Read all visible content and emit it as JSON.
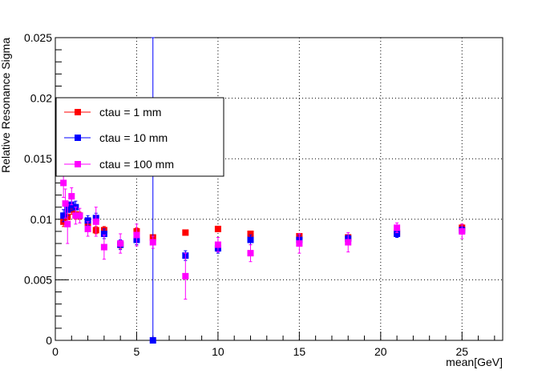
{
  "chart_data": {
    "type": "scatter",
    "title": "",
    "xlabel": "mean[GeV]",
    "ylabel": "Relative Resonance Sigma",
    "xlim": [
      0,
      27.5
    ],
    "ylim": [
      0,
      0.025
    ],
    "xticks": [
      0,
      5,
      10,
      15,
      20,
      25
    ],
    "xtick_labels": [
      "0",
      "5",
      "10",
      "15",
      "20",
      "25"
    ],
    "yticks": [
      0,
      0.005,
      0.01,
      0.015,
      0.02,
      0.025
    ],
    "ytick_labels": [
      "0",
      "0.005",
      "0.01",
      "0.015",
      "0.02",
      "0.025"
    ],
    "grid": true,
    "legend_position": "upper-left",
    "series": [
      {
        "name": "ctau = 1 mm",
        "color": "#ff0000",
        "points": [
          {
            "x": 0.5,
            "y": 0.0098,
            "err": 0.0004
          },
          {
            "x": 0.75,
            "y": 0.0102,
            "err": 0.0004
          },
          {
            "x": 1.0,
            "y": 0.0108,
            "err": 0.0004
          },
          {
            "x": 1.25,
            "y": 0.0104,
            "err": 0.0004
          },
          {
            "x": 1.5,
            "y": 0.0103,
            "err": 0.0003
          },
          {
            "x": 2.0,
            "y": 0.0097,
            "err": 0.0003
          },
          {
            "x": 2.5,
            "y": 0.0091,
            "err": 0.0003
          },
          {
            "x": 3.0,
            "y": 0.0091,
            "err": 0.0003
          },
          {
            "x": 4.0,
            "y": 0.0079,
            "err": 0.0003
          },
          {
            "x": 5.0,
            "y": 0.009,
            "err": 0.0003
          },
          {
            "x": 6.0,
            "y": 0.0085,
            "err": 0.0002
          },
          {
            "x": 8.0,
            "y": 0.0089,
            "err": 0.0002
          },
          {
            "x": 10.0,
            "y": 0.0092,
            "err": 0.0002
          },
          {
            "x": 12.0,
            "y": 0.0088,
            "err": 0.0002
          },
          {
            "x": 15.0,
            "y": 0.0086,
            "err": 0.0002
          },
          {
            "x": 18.0,
            "y": 0.0085,
            "err": 0.0002
          },
          {
            "x": 21.0,
            "y": 0.0089,
            "err": 0.0003
          },
          {
            "x": 25.0,
            "y": 0.0093,
            "err": 0.0003
          }
        ]
      },
      {
        "name": "ctau = 10 mm",
        "color": "#0000ff",
        "points": [
          {
            "x": 0.5,
            "y": 0.0103,
            "err": 0.0005
          },
          {
            "x": 0.75,
            "y": 0.0108,
            "err": 0.0005
          },
          {
            "x": 1.0,
            "y": 0.0112,
            "err": 0.0005
          },
          {
            "x": 1.25,
            "y": 0.011,
            "err": 0.0005
          },
          {
            "x": 2.0,
            "y": 0.0099,
            "err": 0.0004
          },
          {
            "x": 2.5,
            "y": 0.0101,
            "err": 0.0004
          },
          {
            "x": 3.0,
            "y": 0.0088,
            "err": 0.0004
          },
          {
            "x": 4.0,
            "y": 0.0079,
            "err": 0.0004
          },
          {
            "x": 5.0,
            "y": 0.0083,
            "err": 0.0004
          },
          {
            "x": 6.0,
            "y": 0.0,
            "err": 0.025
          },
          {
            "x": 8.0,
            "y": 0.007,
            "err": 0.0004
          },
          {
            "x": 10.0,
            "y": 0.0076,
            "err": 0.0004
          },
          {
            "x": 12.0,
            "y": 0.0083,
            "err": 0.0004
          },
          {
            "x": 15.0,
            "y": 0.0083,
            "err": 0.0004
          },
          {
            "x": 18.0,
            "y": 0.0084,
            "err": 0.0003
          },
          {
            "x": 21.0,
            "y": 0.0088,
            "err": 0.0003
          },
          {
            "x": 25.0,
            "y": 0.0091,
            "err": 0.0003
          }
        ]
      },
      {
        "name": "ctau = 100 mm",
        "color": "#ff00ff",
        "points": [
          {
            "x": 0.5,
            "y": 0.013,
            "err": 0.0012
          },
          {
            "x": 0.62,
            "y": 0.0113,
            "err": 0.0012
          },
          {
            "x": 0.75,
            "y": 0.0096,
            "err": 0.0016
          },
          {
            "x": 1.0,
            "y": 0.0119,
            "err": 0.0007
          },
          {
            "x": 1.25,
            "y": 0.0103,
            "err": 0.0007
          },
          {
            "x": 1.5,
            "y": 0.0103,
            "err": 0.0006
          },
          {
            "x": 2.0,
            "y": 0.0092,
            "err": 0.0006
          },
          {
            "x": 2.5,
            "y": 0.0098,
            "err": 0.0012
          },
          {
            "x": 3.0,
            "y": 0.0077,
            "err": 0.001
          },
          {
            "x": 4.0,
            "y": 0.008,
            "err": 0.0008
          },
          {
            "x": 5.0,
            "y": 0.0087,
            "err": 0.0009
          },
          {
            "x": 6.0,
            "y": 0.0081,
            "err": 0.0005
          },
          {
            "x": 8.0,
            "y": 0.0053,
            "err": 0.0019
          },
          {
            "x": 10.0,
            "y": 0.0079,
            "err": 0.0006
          },
          {
            "x": 12.0,
            "y": 0.0072,
            "err": 0.0007
          },
          {
            "x": 15.0,
            "y": 0.008,
            "err": 0.0008
          },
          {
            "x": 18.0,
            "y": 0.0081,
            "err": 0.0008
          },
          {
            "x": 21.0,
            "y": 0.0093,
            "err": 0.0004
          },
          {
            "x": 25.0,
            "y": 0.009,
            "err": 0.0006
          }
        ]
      }
    ]
  }
}
